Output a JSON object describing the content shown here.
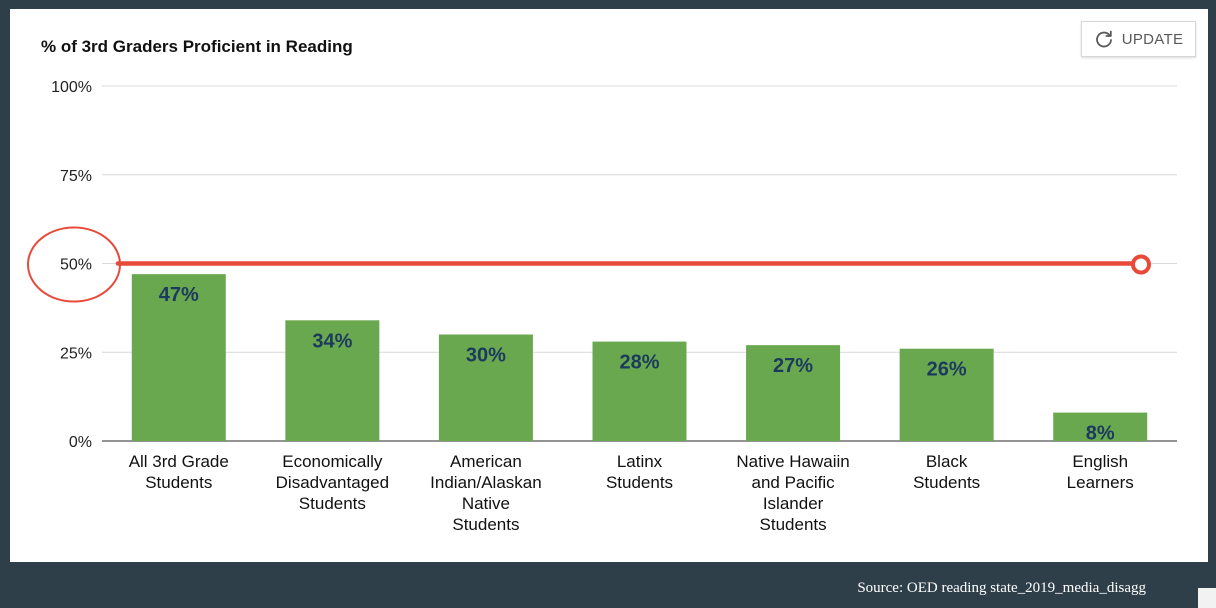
{
  "toolbar": {
    "update_label": "UPDATE",
    "update_icon": "refresh-icon"
  },
  "source_note": "Source: OED reading state_2019_media_disagg",
  "colors": {
    "background": "#2f3f4a",
    "bar": "#6aa84f",
    "bar_label": "#1c3a5e",
    "threshold": "#e84a3a"
  },
  "chart_data": {
    "type": "bar",
    "title": "% of 3rd Graders Proficient in Reading",
    "xlabel": "",
    "ylabel": "",
    "categories": [
      [
        "All 3rd Grade",
        "Students"
      ],
      [
        "Economically",
        "Disadvantaged",
        "Students"
      ],
      [
        "American",
        "Indian/Alaskan",
        "Native",
        "Students"
      ],
      [
        "Latinx",
        "Students"
      ],
      [
        "Native Hawaiin",
        "and Pacific",
        "Islander",
        "Students"
      ],
      [
        "Black",
        "Students"
      ],
      [
        "English",
        "Learners"
      ]
    ],
    "values": [
      47,
      34,
      30,
      28,
      27,
      26,
      8
    ],
    "value_labels": [
      "47%",
      "34%",
      "30%",
      "28%",
      "27%",
      "26%",
      "8%"
    ],
    "ylim": [
      0,
      100
    ],
    "yticks": [
      0,
      25,
      50,
      75,
      100
    ],
    "ytick_labels": [
      "0%",
      "25%",
      "50%",
      "75%",
      "100%"
    ],
    "grid": true,
    "legend": "none",
    "annotations": {
      "threshold_line": 50,
      "circled_tick": "50%"
    }
  }
}
